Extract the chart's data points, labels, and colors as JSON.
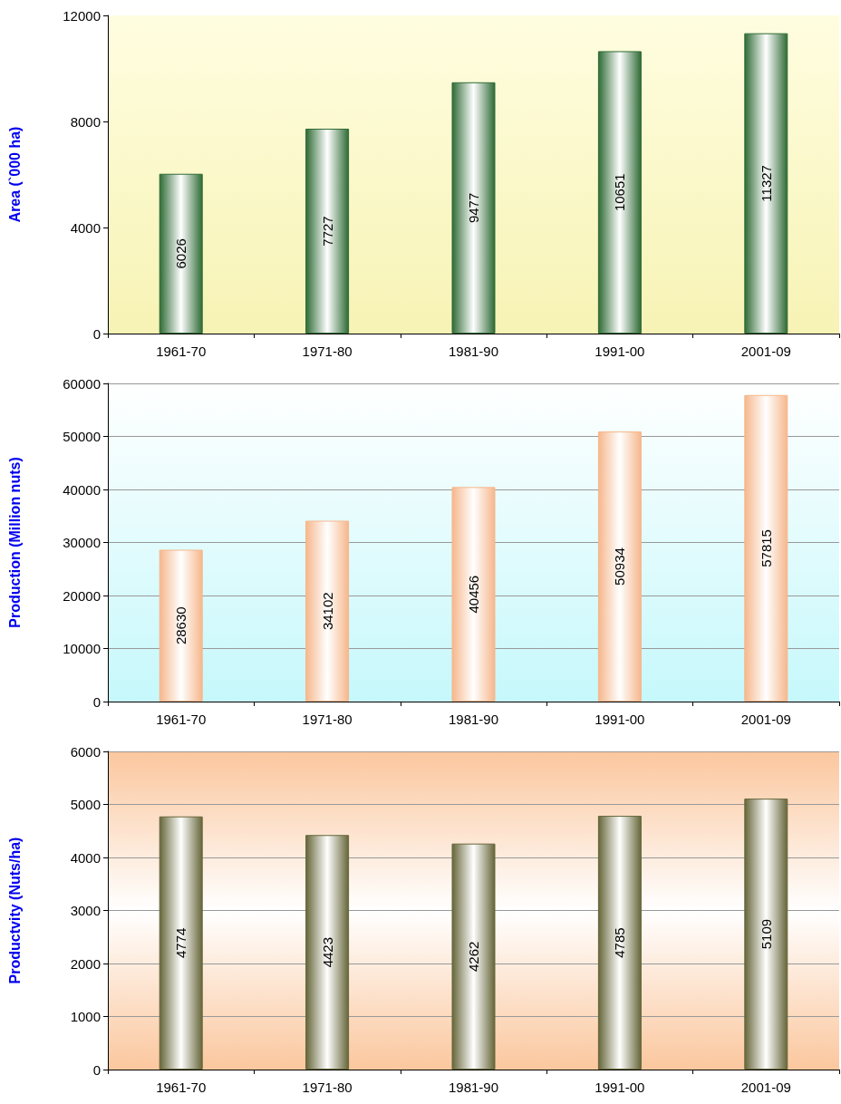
{
  "chart_data": [
    {
      "type": "bar",
      "ylabel": "Area (`000 ha)",
      "categories": [
        "1961-70",
        "1971-80",
        "1981-90",
        "1991-00",
        "2001-09"
      ],
      "values": [
        6026,
        7727,
        9477,
        10651,
        11327
      ],
      "color": "#2f6b35",
      "ylim": [
        0,
        12000
      ],
      "yticks": [
        0,
        4000,
        8000,
        12000
      ],
      "grid": false,
      "data_labels": true
    },
    {
      "type": "bar",
      "ylabel": "Production (Million nuts)",
      "categories": [
        "1961-70",
        "1971-80",
        "1981-90",
        "1991-00",
        "2001-09"
      ],
      "values": [
        28630,
        34102,
        40456,
        50934,
        57815
      ],
      "color": "#f6b78c",
      "ylim": [
        0,
        60000
      ],
      "yticks": [
        0,
        10000,
        20000,
        30000,
        40000,
        50000,
        60000
      ],
      "grid": "y",
      "data_labels": true
    },
    {
      "type": "bar",
      "ylabel": "Productvity (Nuts/ha)",
      "categories": [
        "1961-70",
        "1971-80",
        "1981-90",
        "1991-00",
        "2001-09"
      ],
      "values": [
        4774,
        4423,
        4262,
        4785,
        5109
      ],
      "color": "#66663a",
      "ylim": [
        0,
        6000
      ],
      "yticks": [
        0,
        1000,
        2000,
        3000,
        4000,
        5000,
        6000
      ],
      "grid": "y",
      "data_labels": true
    }
  ]
}
